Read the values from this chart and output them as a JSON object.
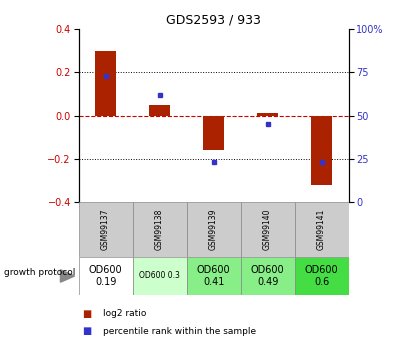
{
  "title": "GDS2593 / 933",
  "samples": [
    "GSM99137",
    "GSM99138",
    "GSM99139",
    "GSM99140",
    "GSM99141"
  ],
  "log2_ratios": [
    0.3,
    0.05,
    -0.16,
    0.01,
    -0.32
  ],
  "percentile_ranks": [
    73,
    62,
    23,
    45,
    23
  ],
  "ylim_left": [
    -0.4,
    0.4
  ],
  "ylim_right": [
    0,
    100
  ],
  "yticks_left": [
    -0.4,
    -0.2,
    0.0,
    0.2,
    0.4
  ],
  "yticks_right": [
    0,
    25,
    50,
    75,
    100
  ],
  "bar_color": "#aa2200",
  "dot_color": "#3333cc",
  "dashed_color": "#cc0000",
  "protocol_labels": [
    "OD600\n0.19",
    "OD600 0.3",
    "OD600\n0.41",
    "OD600\n0.49",
    "OD600\n0.6"
  ],
  "protocol_bg": [
    "#ffffff",
    "#ccffcc",
    "#88ee88",
    "#88ee88",
    "#44dd44"
  ],
  "protocol_fontsize": [
    7.0,
    5.5,
    7.0,
    7.0,
    7.0
  ],
  "label_log2": "log2 ratio",
  "label_pct": "percentile rank within the sample",
  "growth_protocol_label": "growth protocol",
  "sample_label_fontsize": 5.5,
  "title_fontsize": 9
}
